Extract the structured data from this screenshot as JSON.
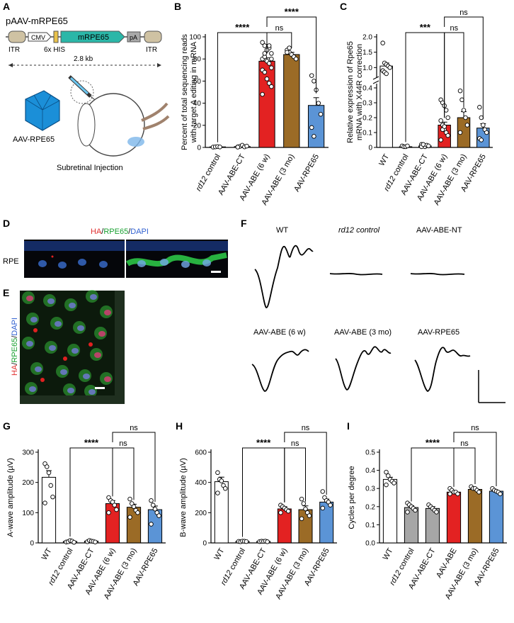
{
  "panels": {
    "A": "A",
    "B": "B",
    "C": "C",
    "D": "D",
    "E": "E",
    "F": "F",
    "G": "G",
    "H": "H",
    "I": "I"
  },
  "colors": {
    "wt": "#ffffff",
    "control": "#ffffff",
    "grey": "#a6a6a6",
    "abe6w": "#e32222",
    "abe3mo": "#9b6b26",
    "rpe65": "#5b94d6",
    "construct_itr": "#cfc2a3",
    "construct_mrpe65": "#2bb7a8",
    "construct_pa": "#a9a9a9",
    "fundus_bg": "#0a0a0a"
  },
  "panelA": {
    "construct_title": "pAAV-mRPE65",
    "itr_left": "ITR",
    "itr_right": "ITR",
    "cmv": "CMV",
    "his": "6x HIS",
    "mrpe65": "mRPE65",
    "pa": "pA",
    "size": "2.8 kb",
    "virus_label": "AAV-RPE65",
    "injection_label": "Subretinal Injection"
  },
  "panelD": {
    "label_ha": "HA",
    "label_rpe65": "RPE65",
    "label_dapi": "DAPI",
    "slash": "/",
    "side_label": "RPE"
  },
  "panelE": {
    "label_ha": "HA",
    "label_rpe65": "RPE65",
    "label_dapi": "DAPI",
    "slash": "/"
  },
  "panelF": {
    "labels": [
      "WT",
      "rd12 control",
      "AAV-ABE-NT",
      "AAV-ABE (6 w)",
      "AAV-ABE  (3 mo)",
      "AAV-RPE65"
    ]
  },
  "chart_data": [
    {
      "id": "B",
      "type": "bar",
      "ylabel": [
        "Percent of total sequencing reads",
        "with target A editing in mRNA"
      ],
      "ylim": [
        0,
        100
      ],
      "yticks": [
        0,
        20,
        40,
        60,
        80,
        100
      ],
      "categories": [
        "rd12 control",
        "AAV-ABE-CT",
        "AAV-ABE (6 w)",
        "AAV-ABE (3 mo)",
        "AAV-RPE65"
      ],
      "values": [
        0.5,
        0.8,
        78,
        84,
        38
      ],
      "errors": [
        0.3,
        0.5,
        3,
        2,
        7
      ],
      "points": [
        [
          0.3,
          0.5,
          0.8,
          0.4
        ],
        [
          0.5,
          1,
          2,
          0.5,
          1.2,
          0.3
        ],
        [
          95,
          92,
          88,
          90,
          85,
          80,
          82,
          78,
          76,
          72,
          70,
          68,
          62,
          58,
          55,
          48,
          85,
          88,
          92,
          80
        ],
        [
          88,
          86,
          84,
          82,
          80,
          86,
          90
        ],
        [
          65,
          60,
          52,
          40,
          30,
          18,
          10
        ]
      ],
      "sig": [
        {
          "from": 2,
          "to": 0,
          "label": "****",
          "level": 0
        },
        {
          "from": 2,
          "to": 3,
          "label": "ns",
          "level": 0
        },
        {
          "from": 2,
          "to": 4,
          "label": "****",
          "level": 1
        }
      ]
    },
    {
      "id": "C",
      "type": "bar",
      "ylabel": [
        "Relative expression of Rpe65",
        "mRNA with X44R correction"
      ],
      "ytick_labels": [
        "0",
        "0.1",
        "0.2",
        "0.3",
        "0.4",
        "1.0",
        "1.5",
        "2.0"
      ],
      "categories": [
        "WT",
        "rd12 control",
        "AAV-ABE-CT",
        "AAV-ABE (6 w)",
        "AAV-ABE (3 mo)",
        "AAV-RPE65"
      ],
      "values": [
        1.05,
        0.005,
        0.01,
        0.15,
        0.2,
        0.13
      ],
      "errors": [
        0.1,
        0.003,
        0.005,
        0.02,
        0.04,
        0.03
      ],
      "points": [
        [
          1.8,
          1.15,
          1.1,
          1.05,
          1.0,
          0.9,
          0.85,
          0.8
        ],
        [
          0.01,
          0.005,
          0.005,
          0.01
        ],
        [
          0.02,
          0.01,
          0.005,
          0.015,
          0.01,
          0.005,
          0.02
        ],
        [
          0.32,
          0.3,
          0.28,
          0.25,
          0.2,
          0.18,
          0.15,
          0.12,
          0.1,
          0.08,
          0.05,
          0.12,
          0.14
        ],
        [
          0.38,
          0.32,
          0.25,
          0.2,
          0.15,
          0.1
        ],
        [
          0.27,
          0.2,
          0.15,
          0.12,
          0.1,
          0.06,
          0.05
        ]
      ],
      "sig": [
        {
          "from": 3,
          "to": 1,
          "label": "***",
          "level": 0
        },
        {
          "from": 3,
          "to": 4,
          "label": "ns",
          "level": 0
        },
        {
          "from": 3,
          "to": 5,
          "label": "ns",
          "level": 1
        }
      ]
    },
    {
      "id": "G",
      "type": "bar",
      "ylabel": [
        "A-wave amplitude  (µV)"
      ],
      "ylim": [
        0,
        300
      ],
      "yticks": [
        0,
        100,
        200,
        300
      ],
      "categories": [
        "WT",
        "rd12 control",
        "AAV-ABE-CT",
        "AAV-ABE (6 w)",
        "AAV-ABE (3 mo)",
        "AAV-RPE65"
      ],
      "values": [
        217,
        5,
        6,
        130,
        118,
        110
      ],
      "errors": [
        22,
        2,
        2,
        10,
        10,
        12
      ],
      "points": [
        [
          262,
          252,
          232,
          190,
          152,
          132
        ],
        [
          3,
          4,
          8,
          6,
          2
        ],
        [
          4,
          8,
          6,
          5,
          3
        ],
        [
          150,
          140,
          135,
          125,
          110,
          100
        ],
        [
          145,
          130,
          120,
          108,
          100,
          85
        ],
        [
          140,
          125,
          112,
          100,
          90,
          62
        ]
      ],
      "sig": [
        {
          "from": 3,
          "to": 1,
          "label": "****",
          "level": 0
        },
        {
          "from": 3,
          "to": 4,
          "label": "ns",
          "level": 0
        },
        {
          "from": 3,
          "to": 5,
          "label": "ns",
          "level": 1
        }
      ]
    },
    {
      "id": "H",
      "type": "bar",
      "ylabel": [
        "B-wave amplitude  (µV)"
      ],
      "ylim": [
        0,
        600
      ],
      "yticks": [
        0,
        200,
        400,
        600
      ],
      "categories": [
        "WT",
        "rd12 control",
        "AAV-ABE-CT",
        "AAV-ABE (6 w)",
        "AAV-ABE (3 mo)",
        "AAV-RPE65"
      ],
      "values": [
        405,
        10,
        10,
        225,
        220,
        270
      ],
      "errors": [
        30,
        2,
        3,
        15,
        25,
        20
      ],
      "points": [
        [
          465,
          420,
          410,
          380,
          360,
          330
        ],
        [
          10,
          8,
          12,
          11,
          9
        ],
        [
          9,
          11,
          10,
          12,
          8
        ],
        [
          250,
          240,
          230,
          220,
          210,
          200
        ],
        [
          290,
          260,
          225,
          200,
          180,
          160
        ],
        [
          340,
          300,
          280,
          270,
          250,
          230
        ]
      ],
      "sig": [
        {
          "from": 3,
          "to": 1,
          "label": "****",
          "level": 0
        },
        {
          "from": 3,
          "to": 4,
          "label": "ns",
          "level": 0
        },
        {
          "from": 3,
          "to": 5,
          "label": "ns",
          "level": 1
        }
      ]
    },
    {
      "id": "I",
      "type": "bar",
      "ylabel": [
        "Cycles per degree"
      ],
      "ylim": [
        0,
        0.5
      ],
      "yticks": [
        0,
        0.1,
        0.2,
        0.3,
        0.4,
        0.5
      ],
      "ytick_labels": [
        "0.0",
        "0.1",
        "0.2",
        "0.3",
        "0.4",
        "0.5"
      ],
      "categories": [
        "WT",
        "rd12 control",
        "AAV-ABE-CT",
        "AAV-ABE",
        "AAV-ABE (3 mo)",
        "AAV-RPE65"
      ],
      "values": [
        0.35,
        0.195,
        0.19,
        0.28,
        0.295,
        0.285
      ],
      "errors": [
        0.012,
        0.01,
        0.01,
        0.006,
        0.006,
        0.004
      ],
      "points": [
        [
          0.39,
          0.37,
          0.35,
          0.34,
          0.33,
          0.32
        ],
        [
          0.22,
          0.21,
          0.2,
          0.19,
          0.18,
          0.17
        ],
        [
          0.21,
          0.2,
          0.19,
          0.18,
          0.17
        ],
        [
          0.3,
          0.29,
          0.28,
          0.28,
          0.27,
          0.27
        ],
        [
          0.31,
          0.3,
          0.3,
          0.29,
          0.28
        ],
        [
          0.3,
          0.29,
          0.285,
          0.28,
          0.27
        ]
      ],
      "sig": [
        {
          "from": 3,
          "to": 1,
          "label": "****",
          "level": 0
        },
        {
          "from": 3,
          "to": 4,
          "label": "ns",
          "level": 0
        },
        {
          "from": 3,
          "to": 5,
          "label": "ns",
          "level": 1
        }
      ]
    }
  ]
}
